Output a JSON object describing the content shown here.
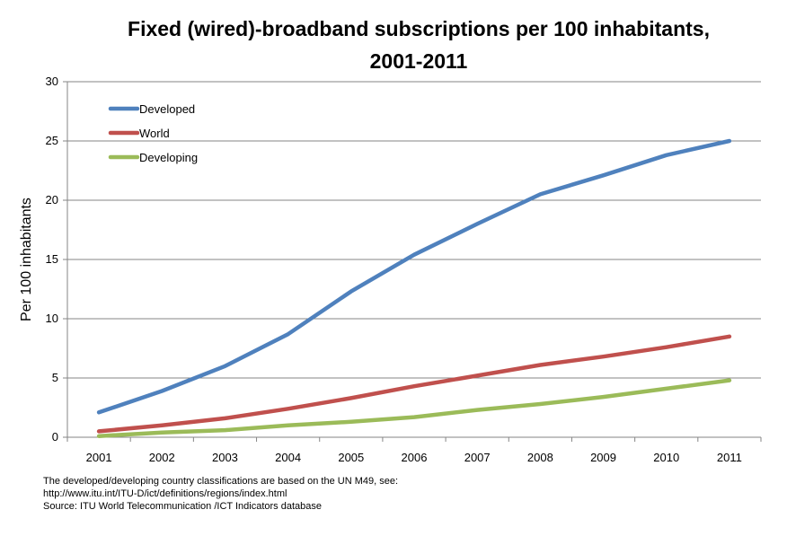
{
  "chart_data": {
    "type": "line",
    "title": "Fixed (wired)-broadband subscriptions per 100 inhabitants,\n2001-2011",
    "xlabel": "",
    "ylabel": "Per 100 inhabitants",
    "categories": [
      "2001",
      "2002",
      "2003",
      "2004",
      "2005",
      "2006",
      "2007",
      "2008",
      "2009",
      "2010",
      "2011"
    ],
    "ylim": [
      0,
      30
    ],
    "yticks": [
      "0",
      "5",
      "10",
      "15",
      "20",
      "25",
      "30"
    ],
    "grid": true,
    "legend_position": "top-left",
    "series": [
      {
        "name": "Developed",
        "color": "#4F81BD",
        "values": [
          2.1,
          3.9,
          6.0,
          8.7,
          12.3,
          15.4,
          18.0,
          20.5,
          22.1,
          23.8,
          25.0
        ]
      },
      {
        "name": "World",
        "color": "#C0504D",
        "values": [
          0.5,
          1.0,
          1.6,
          2.4,
          3.3,
          4.3,
          5.2,
          6.1,
          6.8,
          7.6,
          8.5
        ]
      },
      {
        "name": "Developing",
        "color": "#9BBB59",
        "values": [
          0.1,
          0.4,
          0.6,
          1.0,
          1.3,
          1.7,
          2.3,
          2.8,
          3.4,
          4.1,
          4.8
        ]
      }
    ]
  },
  "footnote": {
    "line1": "The developed/developing country classifications are based on the  UN M49, see:",
    "line2": "http://www.itu.int/ITU-D/ict/definitions/regions/index.html",
    "line3": "Source:  ITU World Telecommunication /ICT Indicators database"
  }
}
